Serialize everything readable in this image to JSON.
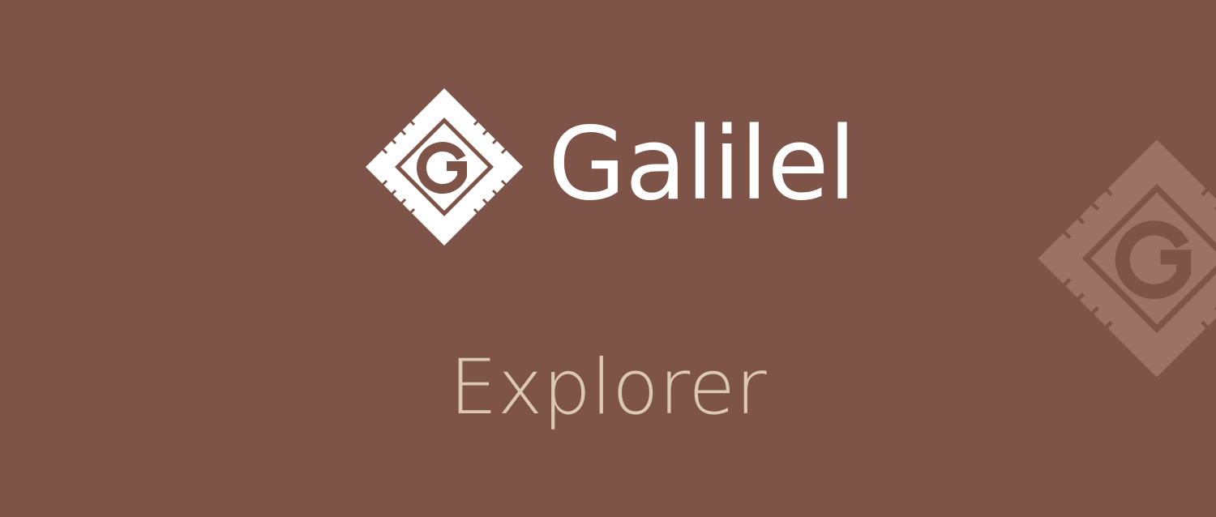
{
  "brand": {
    "name": "Galilel",
    "logo_letter": "G",
    "icon": "galilel-chip-icon"
  },
  "product": {
    "name": "Explorer"
  },
  "colors": {
    "background": "#7e5448",
    "brand_text": "#ffffff",
    "product_text": "#dbc8b6",
    "watermark": "#9a7266"
  }
}
